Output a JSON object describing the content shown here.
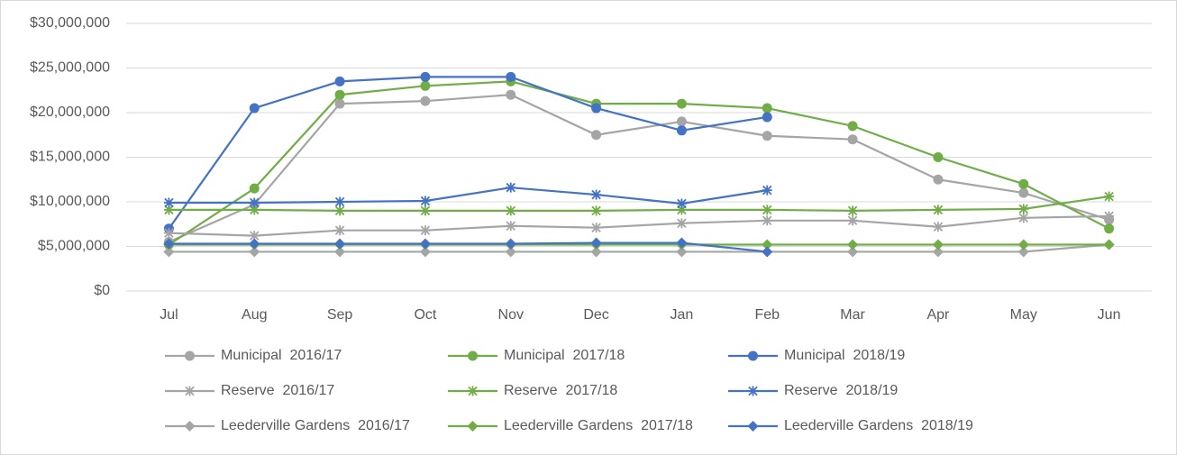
{
  "chart_data": {
    "type": "line",
    "categories": [
      "Jul",
      "Aug",
      "Sep",
      "Oct",
      "Nov",
      "Dec",
      "Jan",
      "Feb",
      "Mar",
      "Apr",
      "May",
      "Jun"
    ],
    "ylim": [
      0,
      30000000
    ],
    "yticks": [
      {
        "value": 0,
        "label": "$0"
      },
      {
        "value": 5000000,
        "label": "$5,000,000"
      },
      {
        "value": 10000000,
        "label": "$10,000,000"
      },
      {
        "value": 15000000,
        "label": "$15,000,000"
      },
      {
        "value": 20000000,
        "label": "$20,000,000"
      },
      {
        "value": 25000000,
        "label": "$25,000,000"
      },
      {
        "value": 30000000,
        "label": "$30,000,000"
      }
    ],
    "grid": true,
    "legend": "bottom",
    "series": [
      {
        "name": "Municipal  2016/17",
        "color": "#a5a5a5",
        "marker": "circle",
        "values": [
          5500000,
          9700000,
          21000000,
          21300000,
          22000000,
          17500000,
          19000000,
          17400000,
          17000000,
          12500000,
          11000000,
          8000000
        ]
      },
      {
        "name": "Municipal  2017/18",
        "color": "#70ad47",
        "marker": "circle",
        "values": [
          5200000,
          11500000,
          22000000,
          23000000,
          23500000,
          21000000,
          21000000,
          20500000,
          18500000,
          15000000,
          12000000,
          7000000
        ]
      },
      {
        "name": "Municipal  2018/19",
        "color": "#4472c4",
        "marker": "circle",
        "values": [
          7000000,
          20500000,
          23500000,
          24000000,
          24000000,
          20500000,
          18000000,
          19500000,
          null,
          null,
          null,
          null
        ]
      },
      {
        "name": "Reserve  2016/17",
        "color": "#a5a5a5",
        "marker": "star",
        "values": [
          6500000,
          6200000,
          6800000,
          6800000,
          7300000,
          7100000,
          7600000,
          7900000,
          7900000,
          7200000,
          8200000,
          8400000
        ]
      },
      {
        "name": "Reserve  2017/18",
        "color": "#70ad47",
        "marker": "star",
        "values": [
          9100000,
          9100000,
          9000000,
          9000000,
          9000000,
          9000000,
          9100000,
          9100000,
          9000000,
          9100000,
          9200000,
          10600000
        ]
      },
      {
        "name": "Reserve  2018/19",
        "color": "#4472c4",
        "marker": "star",
        "values": [
          9900000,
          9900000,
          10000000,
          10100000,
          11600000,
          10800000,
          9800000,
          11300000,
          null,
          null,
          null,
          null
        ]
      },
      {
        "name": "Leederville Gardens  2016/17",
        "color": "#a5a5a5",
        "marker": "diamond",
        "values": [
          4400000,
          4400000,
          4400000,
          4400000,
          4400000,
          4400000,
          4400000,
          4400000,
          4400000,
          4400000,
          4400000,
          5200000
        ]
      },
      {
        "name": "Leederville Gardens  2017/18",
        "color": "#70ad47",
        "marker": "diamond",
        "values": [
          5200000,
          5200000,
          5200000,
          5200000,
          5200000,
          5200000,
          5200000,
          5200000,
          5200000,
          5200000,
          5200000,
          5200000
        ]
      },
      {
        "name": "Leederville Gardens  2018/19",
        "color": "#4472c4",
        "marker": "diamond",
        "values": [
          5300000,
          5300000,
          5300000,
          5300000,
          5300000,
          5400000,
          5400000,
          4400000,
          null,
          null,
          null,
          null
        ]
      }
    ]
  }
}
